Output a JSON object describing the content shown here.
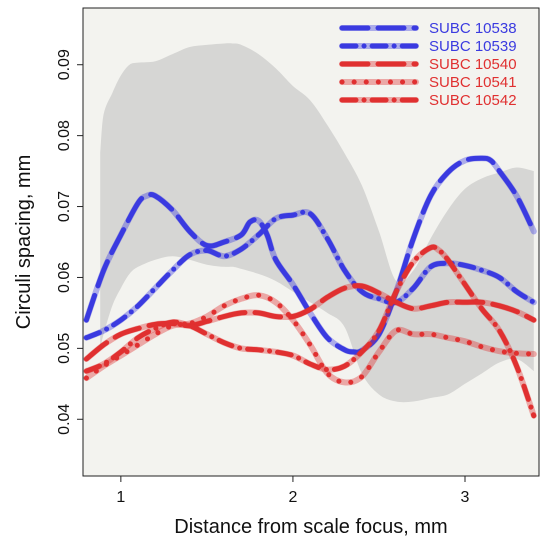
{
  "chart_data": {
    "type": "line",
    "title": "",
    "xlabel": "Distance from scale focus, mm",
    "ylabel": "Circuli spacing, mm",
    "xlim": [
      0.78,
      3.43
    ],
    "ylim": [
      0.032,
      0.098
    ],
    "xticks": [
      1,
      2,
      3
    ],
    "yticks": [
      0.04,
      0.05,
      0.06,
      0.07,
      0.08,
      0.09
    ],
    "ytick_labels": [
      "0.04",
      "0.05",
      "0.06",
      "0.07",
      "0.08",
      "0.09"
    ],
    "grid": false,
    "legend_position": "top-right",
    "background_color": "#f3f3ef",
    "band": {
      "color": "#d6d6d4",
      "x": [
        0.88,
        0.9,
        0.95,
        1.0,
        1.05,
        1.1,
        1.2,
        1.3,
        1.4,
        1.5,
        1.6,
        1.65,
        1.7,
        1.8,
        1.9,
        2.0,
        2.1,
        2.2,
        2.3,
        2.4,
        2.5,
        2.6,
        2.7,
        2.8,
        2.9,
        3.0,
        3.1,
        3.2,
        3.3,
        3.4
      ],
      "upper": [
        0.0775,
        0.083,
        0.086,
        0.0885,
        0.09,
        0.0903,
        0.0905,
        0.0915,
        0.0925,
        0.0928,
        0.093,
        0.093,
        0.0928,
        0.0915,
        0.0895,
        0.087,
        0.085,
        0.0815,
        0.0775,
        0.073,
        0.0665,
        0.0595,
        0.061,
        0.0655,
        0.0695,
        0.0725,
        0.074,
        0.0748,
        0.0755,
        0.075
      ],
      "lower": [
        0.05,
        0.052,
        0.056,
        0.0585,
        0.0605,
        0.0615,
        0.0625,
        0.063,
        0.0625,
        0.0618,
        0.0615,
        0.0615,
        0.0612,
        0.0605,
        0.0595,
        0.058,
        0.0565,
        0.055,
        0.053,
        0.0465,
        0.0435,
        0.0425,
        0.0425,
        0.043,
        0.0435,
        0.045,
        0.0465,
        0.048,
        0.0485,
        0.0468
      ]
    },
    "series": [
      {
        "name": "SUBC 10538",
        "color": "#3a3ae0",
        "dash": "long",
        "x": [
          0.8,
          0.9,
          1.0,
          1.1,
          1.15,
          1.2,
          1.3,
          1.4,
          1.5,
          1.6,
          1.7,
          1.75,
          1.8,
          1.85,
          1.9,
          2.0,
          2.1,
          2.2,
          2.3,
          2.35,
          2.4,
          2.5,
          2.6,
          2.7,
          2.8,
          2.9,
          3.0,
          3.1,
          3.15,
          3.2,
          3.3,
          3.4
        ],
        "y": [
          0.054,
          0.061,
          0.066,
          0.0705,
          0.0715,
          0.0715,
          0.0695,
          0.0665,
          0.0645,
          0.065,
          0.066,
          0.0678,
          0.068,
          0.066,
          0.0625,
          0.059,
          0.055,
          0.0515,
          0.0498,
          0.0495,
          0.0497,
          0.052,
          0.058,
          0.0655,
          0.0715,
          0.0748,
          0.0765,
          0.0768,
          0.0765,
          0.075,
          0.0715,
          0.0665
        ]
      },
      {
        "name": "SUBC 10539",
        "color": "#3a3ae0",
        "dash": "dash-dot",
        "x": [
          0.8,
          0.9,
          1.0,
          1.1,
          1.2,
          1.3,
          1.4,
          1.5,
          1.6,
          1.7,
          1.8,
          1.9,
          2.0,
          2.1,
          2.2,
          2.3,
          2.4,
          2.5,
          2.6,
          2.7,
          2.8,
          2.9,
          3.0,
          3.1,
          3.2,
          3.3,
          3.4
        ],
        "y": [
          0.0515,
          0.0525,
          0.054,
          0.056,
          0.0585,
          0.061,
          0.0632,
          0.0638,
          0.063,
          0.064,
          0.066,
          0.0683,
          0.0688,
          0.069,
          0.0655,
          0.061,
          0.058,
          0.057,
          0.0565,
          0.0585,
          0.0615,
          0.062,
          0.0617,
          0.061,
          0.06,
          0.058,
          0.0565
        ]
      },
      {
        "name": "SUBC 10540",
        "color": "#e03030",
        "dash": "long",
        "x": [
          0.8,
          0.9,
          1.0,
          1.1,
          1.2,
          1.3,
          1.4,
          1.5,
          1.6,
          1.7,
          1.8,
          1.9,
          2.0,
          2.1,
          2.2,
          2.3,
          2.4,
          2.5,
          2.6,
          2.7,
          2.8,
          2.9,
          3.0,
          3.1,
          3.2,
          3.3,
          3.4
        ],
        "y": [
          0.0485,
          0.0505,
          0.052,
          0.0528,
          0.0534,
          0.0535,
          0.0532,
          0.0538,
          0.0545,
          0.055,
          0.055,
          0.0545,
          0.0545,
          0.0555,
          0.0572,
          0.0585,
          0.0588,
          0.0578,
          0.0565,
          0.0556,
          0.056,
          0.0565,
          0.0565,
          0.0565,
          0.056,
          0.0552,
          0.054
        ]
      },
      {
        "name": "SUBC 10541",
        "color": "#e03030",
        "dash": "dotted",
        "x": [
          0.8,
          0.9,
          1.0,
          1.1,
          1.2,
          1.3,
          1.4,
          1.5,
          1.6,
          1.7,
          1.8,
          1.9,
          2.0,
          2.1,
          2.2,
          2.3,
          2.4,
          2.5,
          2.6,
          2.7,
          2.8,
          2.9,
          3.0,
          3.1,
          3.2,
          3.3,
          3.4
        ],
        "y": [
          0.0458,
          0.0475,
          0.049,
          0.0505,
          0.052,
          0.0532,
          0.0535,
          0.0545,
          0.056,
          0.057,
          0.0575,
          0.0565,
          0.054,
          0.0505,
          0.0465,
          0.0452,
          0.046,
          0.0495,
          0.0525,
          0.052,
          0.052,
          0.0515,
          0.051,
          0.0502,
          0.0496,
          0.0493,
          0.0492
        ]
      },
      {
        "name": "SUBC 10542",
        "color": "#e03030",
        "dash": "dash-dot",
        "x": [
          0.8,
          0.9,
          1.0,
          1.1,
          1.2,
          1.3,
          1.4,
          1.5,
          1.6,
          1.7,
          1.8,
          1.9,
          2.0,
          2.1,
          2.2,
          2.3,
          2.4,
          2.5,
          2.6,
          2.7,
          2.8,
          2.85,
          2.9,
          3.0,
          3.1,
          3.2,
          3.3,
          3.4
        ],
        "y": [
          0.0468,
          0.0478,
          0.0495,
          0.0515,
          0.0528,
          0.0537,
          0.0532,
          0.052,
          0.0508,
          0.05,
          0.0498,
          0.0495,
          0.049,
          0.0478,
          0.047,
          0.0475,
          0.0495,
          0.0525,
          0.058,
          0.0622,
          0.0642,
          0.0638,
          0.0625,
          0.059,
          0.0555,
          0.0525,
          0.0475,
          0.0405
        ]
      }
    ]
  }
}
